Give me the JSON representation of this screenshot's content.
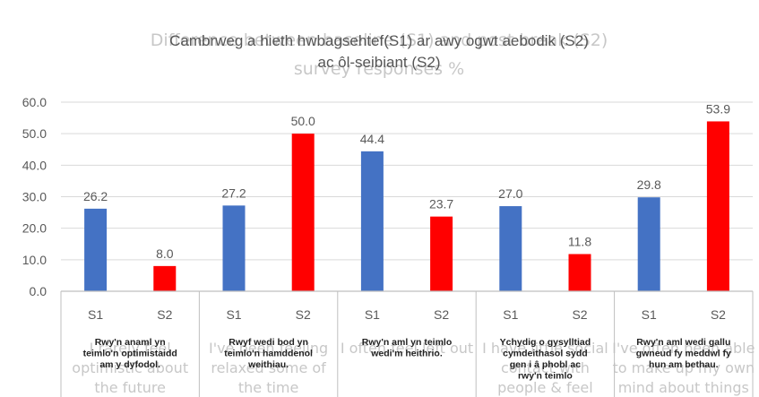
{
  "chart_data": {
    "type": "bar",
    "title_overlay": "Difference between baseline (S1) and post break (S2) survey responses %",
    "title_lines": [
      "Cambrweg a hieth hwbagsehtef(S1) ar awy ogwt aebodik (S2)",
      "ac ôl-seibiant (S2)"
    ],
    "ylim": [
      0,
      60
    ],
    "yticks": [
      "0.0",
      "10.0",
      "20.0",
      "30.0",
      "40.0",
      "50.0",
      "60.0"
    ],
    "series_colors": {
      "S1": "#4472c4",
      "S2": "#ff0000"
    },
    "groups": [
      {
        "english": [
          "I rarely feel",
          "optimistic about",
          "the future"
        ],
        "welsh": [
          "Rwy'n anaml yn",
          "teimlo'n optimistaidd",
          "am y dyfodol."
        ],
        "bars": [
          {
            "series": "S1",
            "value": 26.2,
            "label": "26.2"
          },
          {
            "series": "S2",
            "value": 8.0,
            "label": "8.0"
          }
        ]
      },
      {
        "english": [
          "I've been feeling",
          "relaxed some of",
          "the time"
        ],
        "welsh": [
          "Rwyf wedi bod yn",
          "teimlo'n hamddenol",
          "weithiau."
        ],
        "bars": [
          {
            "series": "S1",
            "value": 27.2,
            "label": "27.2"
          },
          {
            "series": "S2",
            "value": 50.0,
            "label": "50.0"
          }
        ]
      },
      {
        "english": [
          "I often feel left out"
        ],
        "welsh": [
          "Rwy'n aml yn teimlo",
          "wedi'm heithrio."
        ],
        "bars": [
          {
            "series": "S1",
            "value": 44.4,
            "label": "44.4"
          },
          {
            "series": "S2",
            "value": 23.7,
            "label": "23.7"
          }
        ]
      },
      {
        "english": [
          "I have little social",
          "contact with",
          "people & feel"
        ],
        "welsh": [
          "Ychydig o gysylltiad",
          "cymdeithasol sydd",
          "gen i â phobl ac",
          "rwy'n teimlo"
        ],
        "bars": [
          {
            "series": "S1",
            "value": 27.0,
            "label": "27.0"
          },
          {
            "series": "S2",
            "value": 11.8,
            "label": "11.8"
          }
        ]
      },
      {
        "english": [
          "I've often been able",
          "to make up my own",
          "mind about things"
        ],
        "welsh": [
          "Rwy'n aml wedi gallu",
          "gwneud fy meddwl fy",
          "hun am bethau."
        ],
        "bars": [
          {
            "series": "S1",
            "value": 29.8,
            "label": "29.8"
          },
          {
            "series": "S2",
            "value": 53.9,
            "label": "53.9"
          }
        ]
      }
    ]
  }
}
